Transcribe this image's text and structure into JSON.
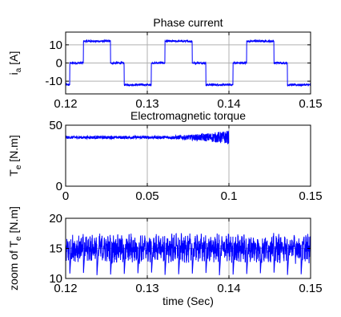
{
  "style": {
    "line_color": "#0000ff",
    "axis_color": "#000000",
    "grid_color": "#b0b0b0",
    "background": "#ffffff"
  },
  "chart_data": [
    {
      "type": "line",
      "title": "Phase current",
      "xlabel": "",
      "ylabel_main": "i",
      "ylabel_sub": "a",
      "ylabel_unit": " [A]",
      "xlim": [
        0.12,
        0.15
      ],
      "ylim": [
        -17,
        17
      ],
      "xticks": [
        0.12,
        0.13,
        0.14,
        0.15
      ],
      "xtick_labels": [
        "0.12",
        "0.13",
        "0.14",
        "0.15"
      ],
      "yticks": [
        -10,
        0,
        10
      ],
      "ytick_labels": [
        "-10",
        "0",
        "10"
      ],
      "grid": true,
      "signal": {
        "kind": "six_step",
        "amplitude": 12,
        "period": 0.01,
        "phase_zero_start": 0.1205,
        "ripple": 1.0
      }
    },
    {
      "type": "line",
      "title": "Electromagnetic torque",
      "xlabel": "",
      "ylabel_main": "T",
      "ylabel_sub": "e",
      "ylabel_unit": " [N.m]",
      "xlim": [
        0,
        0.15
      ],
      "ylim": [
        0,
        50
      ],
      "xticks": [
        0,
        0.05,
        0.1,
        0.15
      ],
      "xtick_labels": [
        "0",
        "0.05",
        "0.1",
        "0.15"
      ],
      "yticks": [
        0,
        50
      ],
      "ytick_labels": [
        "0",
        "50"
      ],
      "grid": true,
      "signal": {
        "kind": "torque_step",
        "before_level": 40,
        "after_level": 15,
        "step_time": 0.1,
        "ripple_before": 1.2,
        "ripple_growth": 4.5,
        "ripple_after": 2.5
      }
    },
    {
      "type": "line",
      "title": "",
      "xlabel": "time (Sec)",
      "ylabel_main": "zoom of T",
      "ylabel_sub": "e",
      "ylabel_unit": " [N.m]",
      "xlim": [
        0.12,
        0.15
      ],
      "ylim": [
        10,
        20
      ],
      "xticks": [
        0.12,
        0.13,
        0.14,
        0.15
      ],
      "xtick_labels": [
        "0.12",
        "0.13",
        "0.14",
        "0.15"
      ],
      "yticks": [
        10,
        15,
        20
      ],
      "ytick_labels": [
        "10",
        "15",
        "20"
      ],
      "grid": true,
      "signal": {
        "kind": "torque_zoom",
        "mean": 15,
        "ripple": 1.8,
        "dip_to": 10.5,
        "dip_period": 0.0016667
      }
    }
  ]
}
